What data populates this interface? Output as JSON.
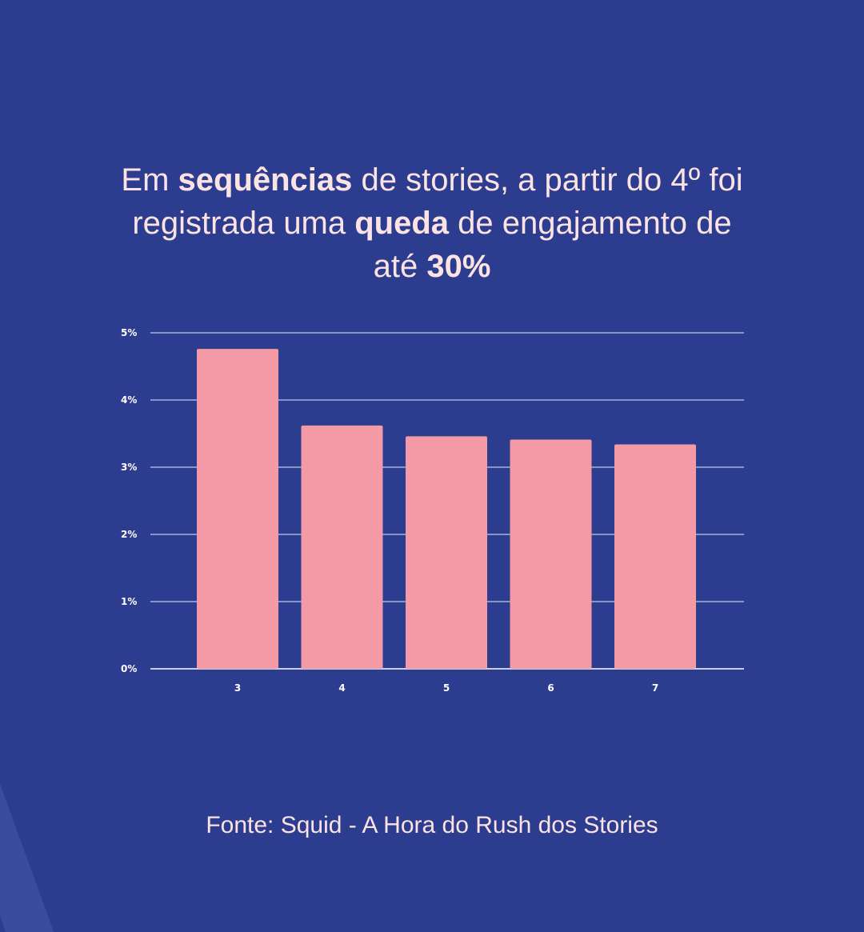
{
  "headline": {
    "p1": "Em ",
    "b1": "sequências",
    "p2": " de stories, a partir do 4º foi registrada uma ",
    "b2": "queda",
    "p3": " de engajamento de até ",
    "b3": "30%"
  },
  "source": "Fonte: Squid - A Hora do Rush dos Stories",
  "colors": {
    "background": "#2c3d8f",
    "bar": "#f49aa7",
    "text": "#fbe3e3",
    "grid": "#ffffff"
  },
  "chart_data": {
    "type": "bar",
    "categories": [
      "3",
      "4",
      "5",
      "6",
      "7"
    ],
    "values": [
      4.76,
      3.62,
      3.46,
      3.41,
      3.34
    ],
    "title": "",
    "xlabel": "",
    "ylabel": "",
    "ylim": [
      0,
      5
    ],
    "yticks": [
      "0%",
      "1%",
      "2%",
      "3%",
      "4%",
      "5%"
    ],
    "grid": true
  }
}
